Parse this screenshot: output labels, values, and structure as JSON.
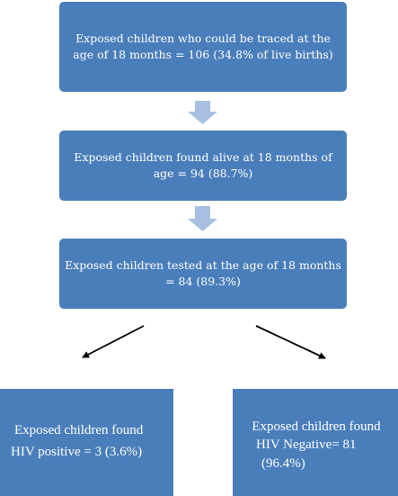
{
  "flowchart": {
    "box1": {
      "text": "Exposed children who could be traced at the age of 18 months = 106 (34.8% of live births)"
    },
    "box2": {
      "text": "Exposed children found alive at 18 months of age = 94 (88.7%)"
    },
    "box3": {
      "text": "Exposed children tested at the age of 18 months = 84 (89.3%)"
    },
    "leaf_left": {
      "line1": "Exposed children found",
      "line2": "HIV positive = 3  (3.6%)"
    },
    "leaf_right": {
      "line1": "Exposed children found",
      "line2": "HIV Negative= 81",
      "line3": "(96.4%)"
    }
  },
  "colors": {
    "box_fill": "#4a7ebb",
    "box_text": "#ffffff",
    "down_arrow_fill": "#a7bfe0",
    "split_arrow_stroke": "#000000"
  }
}
